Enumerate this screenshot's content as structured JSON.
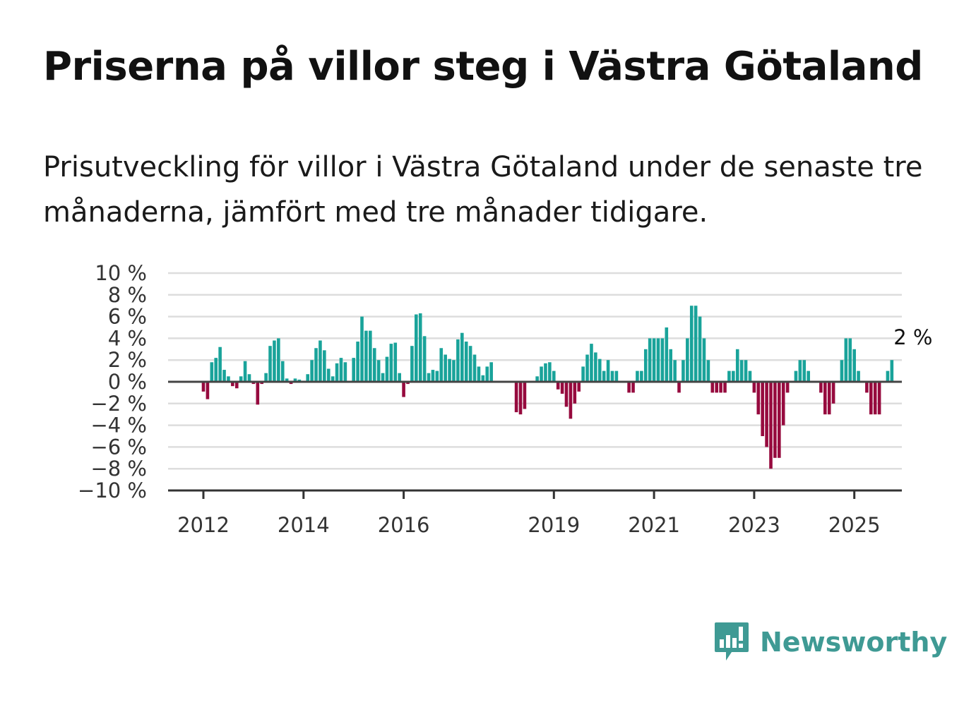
{
  "title": "Priserna på villor steg i Västra Götaland",
  "subtitle": "Prisutveckling för villor i Västra Götaland under de senaste tre månaderna, jämfört med tre månader tidigare.",
  "brand": {
    "name": "Newsworthy",
    "color": "#3f9a94",
    "icon": "newsworthy-logo-icon"
  },
  "colors": {
    "positive": "#19a39a",
    "negative": "#960a3e",
    "grid": "#dddddd",
    "zero": "#444444",
    "axis": "#333333"
  },
  "chart_data": {
    "type": "bar",
    "title": "Priserna på villor steg i Västra Götaland",
    "xlabel": "",
    "ylabel": "",
    "ylim": [
      -10,
      10
    ],
    "y_ticks": [
      10,
      8,
      6,
      4,
      2,
      0,
      -2,
      -4,
      -6,
      -8,
      -10
    ],
    "y_tick_labels": [
      "10 %",
      "8 %",
      "6 %",
      "4 %",
      "2 %",
      "0 %",
      "−2 %",
      "−4 %",
      "−6 %",
      "−8 %",
      "−10 %"
    ],
    "x_ticks": [
      2012,
      2014,
      2016,
      2019,
      2021,
      2023,
      2025
    ],
    "x_tick_labels": [
      "2012",
      "2014",
      "2016",
      "2019",
      "2021",
      "2023",
      "2025"
    ],
    "x_start": 2012.0,
    "x_step_years": 0.08333,
    "grid": true,
    "annotation": {
      "text": "2 %",
      "target": "last-value"
    },
    "values": [
      -0.9,
      -1.6,
      1.8,
      2.2,
      3.2,
      1.1,
      0.5,
      -0.4,
      -0.6,
      0.5,
      1.9,
      0.7,
      -0.2,
      -2.1,
      -0.2,
      0.8,
      3.3,
      3.8,
      4.0,
      1.9,
      0.3,
      -0.2,
      0.3,
      0.2,
      0.1,
      0.7,
      2.0,
      3.1,
      3.8,
      2.9,
      1.2,
      0.5,
      1.7,
      2.2,
      1.8,
      0,
      2.2,
      3.7,
      6.0,
      4.7,
      4.7,
      3.1,
      2.0,
      0.8,
      2.3,
      3.5,
      3.6,
      0.8,
      -1.4,
      -0.2,
      3.3,
      6.2,
      6.3,
      4.2,
      0.8,
      1.1,
      1.0,
      3.1,
      2.5,
      2.1,
      2.0,
      3.9,
      4.5,
      3.7,
      3.3,
      2.5,
      1.4,
      0.6,
      1.4,
      1.8,
      0,
      0,
      0,
      0,
      0,
      -2.8,
      -3.0,
      -2.5,
      0,
      0,
      0.5,
      1.4,
      1.7,
      1.8,
      1.0,
      -0.7,
      -1.1,
      -2.3,
      -3.4,
      -2.0,
      -0.9,
      1.4,
      2.5,
      3.5,
      2.7,
      2.1,
      1.0,
      2.0,
      1.0,
      1.0,
      0,
      0,
      -1.0,
      -1.0,
      1.0,
      1.0,
      3.0,
      4.0,
      4.0,
      4.0,
      4.0,
      5.0,
      3.0,
      2.0,
      -1.0,
      2.0,
      4.0,
      7.0,
      7.0,
      6.0,
      4.0,
      2.0,
      -1.0,
      -1.0,
      -1.0,
      -1.0,
      1.0,
      1.0,
      3.0,
      2.0,
      2.0,
      1.0,
      -1.0,
      -3.0,
      -5.0,
      -6.0,
      -8.0,
      -7.0,
      -7.0,
      -4.0,
      -1.0,
      0,
      1.0,
      2.0,
      2.0,
      1.0,
      0,
      0,
      -1.0,
      -3.0,
      -3.0,
      -2.0,
      0,
      2.0,
      4.0,
      4.0,
      3.0,
      1.0,
      0,
      -1.0,
      -3.0,
      -3.0,
      -3.0,
      0,
      1.0,
      2.0
    ]
  }
}
